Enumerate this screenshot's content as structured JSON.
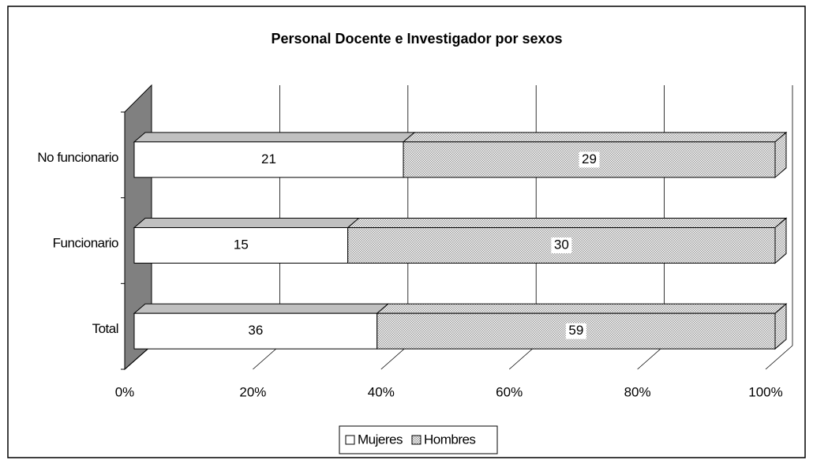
{
  "chart_data": {
    "type": "bar",
    "orientation": "horizontal",
    "stacking": "percent",
    "title": "Personal Docente e Investigador por sexos",
    "categories": [
      "Total",
      "Funcionario",
      "No funcionario"
    ],
    "series": [
      {
        "name": "Mujeres",
        "color": "#ffffff",
        "values": [
          36,
          15,
          21
        ]
      },
      {
        "name": "Hombres",
        "color": "#9a9a9a",
        "values": [
          59,
          30,
          29
        ]
      }
    ],
    "xlim": [
      0,
      100
    ],
    "xticks": [
      {
        "value": 0,
        "label": "0%"
      },
      {
        "value": 20,
        "label": "20%"
      },
      {
        "value": 40,
        "label": "40%"
      },
      {
        "value": 60,
        "label": "60%"
      },
      {
        "value": 80,
        "label": "80%"
      },
      {
        "value": 100,
        "label": "100%"
      }
    ],
    "grid": true,
    "legend": "bottom"
  }
}
